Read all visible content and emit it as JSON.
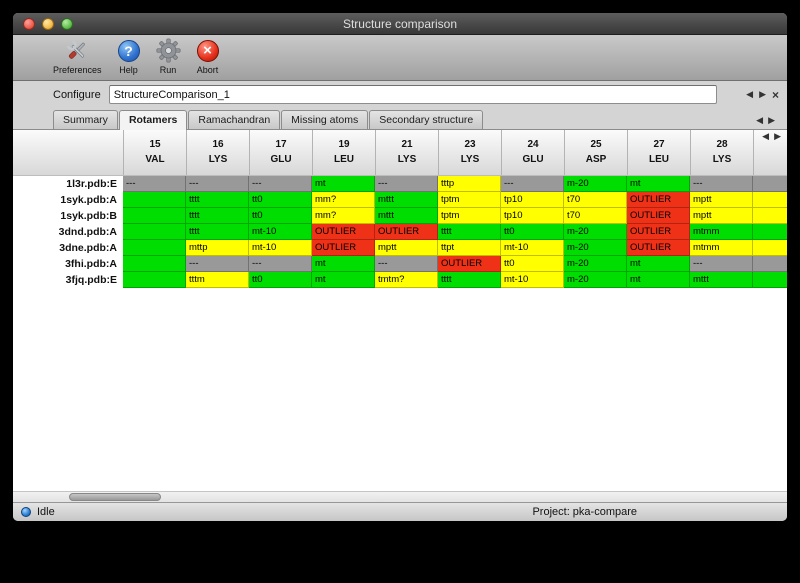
{
  "window": {
    "title": "Structure comparison"
  },
  "toolbar": {
    "items": [
      {
        "label": "Preferences"
      },
      {
        "label": "Help"
      },
      {
        "label": "Run"
      },
      {
        "label": "Abort"
      }
    ]
  },
  "configure": {
    "label": "Configure",
    "value": "StructureComparison_1"
  },
  "tabs": [
    {
      "label": "Summary",
      "active": false
    },
    {
      "label": "Rotamers",
      "active": true
    },
    {
      "label": "Ramachandran",
      "active": false
    },
    {
      "label": "Missing atoms",
      "active": false
    },
    {
      "label": "Secondary structure",
      "active": false
    }
  ],
  "icons": {
    "prev": "◀",
    "next": "▶",
    "close": "×",
    "help": "?",
    "abort": "×"
  },
  "rotamer_table": {
    "columns": [
      {
        "number": "15",
        "residue": "VAL"
      },
      {
        "number": "16",
        "residue": "LYS"
      },
      {
        "number": "17",
        "residue": "GLU"
      },
      {
        "number": "19",
        "residue": "LEU"
      },
      {
        "number": "21",
        "residue": "LYS"
      },
      {
        "number": "23",
        "residue": "LYS"
      },
      {
        "number": "24",
        "residue": "GLU"
      },
      {
        "number": "25",
        "residue": "ASP"
      },
      {
        "number": "27",
        "residue": "LEU"
      },
      {
        "number": "28",
        "residue": "LYS"
      },
      {
        "number": "",
        "residue": ""
      }
    ],
    "rows": [
      {
        "label": "1l3r.pdb:E",
        "cells": [
          {
            "text": "---",
            "color": "gray"
          },
          {
            "text": "---",
            "color": "gray"
          },
          {
            "text": "---",
            "color": "gray"
          },
          {
            "text": "mt",
            "color": "green"
          },
          {
            "text": "---",
            "color": "gray"
          },
          {
            "text": "tttp",
            "color": "yellow"
          },
          {
            "text": "---",
            "color": "gray"
          },
          {
            "text": "m-20",
            "color": "green"
          },
          {
            "text": "mt",
            "color": "green"
          },
          {
            "text": "---",
            "color": "gray"
          },
          {
            "text": "",
            "color": "gray"
          }
        ]
      },
      {
        "label": "1syk.pdb:A",
        "cells": [
          {
            "text": "",
            "color": "green"
          },
          {
            "text": "tttt",
            "color": "green"
          },
          {
            "text": "tt0",
            "color": "green"
          },
          {
            "text": "mm?",
            "color": "yellow"
          },
          {
            "text": "mttt",
            "color": "green"
          },
          {
            "text": "tptm",
            "color": "yellow"
          },
          {
            "text": "tp10",
            "color": "yellow"
          },
          {
            "text": "t70",
            "color": "yellow"
          },
          {
            "text": "OUTLIER",
            "color": "red"
          },
          {
            "text": "mptt",
            "color": "yellow"
          },
          {
            "text": "",
            "color": "yellow"
          }
        ]
      },
      {
        "label": "1syk.pdb:B",
        "cells": [
          {
            "text": "",
            "color": "green"
          },
          {
            "text": "tttt",
            "color": "green"
          },
          {
            "text": "tt0",
            "color": "green"
          },
          {
            "text": "mm?",
            "color": "yellow"
          },
          {
            "text": "mttt",
            "color": "green"
          },
          {
            "text": "tptm",
            "color": "yellow"
          },
          {
            "text": "tp10",
            "color": "yellow"
          },
          {
            "text": "t70",
            "color": "yellow"
          },
          {
            "text": "OUTLIER",
            "color": "red"
          },
          {
            "text": "mptt",
            "color": "yellow"
          },
          {
            "text": "",
            "color": "yellow"
          }
        ]
      },
      {
        "label": "3dnd.pdb:A",
        "cells": [
          {
            "text": "",
            "color": "green"
          },
          {
            "text": "tttt",
            "color": "green"
          },
          {
            "text": "mt-10",
            "color": "green"
          },
          {
            "text": "OUTLIER",
            "color": "red"
          },
          {
            "text": "OUTLIER",
            "color": "red"
          },
          {
            "text": "tttt",
            "color": "green"
          },
          {
            "text": "tt0",
            "color": "green"
          },
          {
            "text": "m-20",
            "color": "green"
          },
          {
            "text": "OUTLIER",
            "color": "red"
          },
          {
            "text": "mtmm",
            "color": "green"
          },
          {
            "text": "",
            "color": "green"
          }
        ]
      },
      {
        "label": "3dne.pdb:A",
        "cells": [
          {
            "text": "",
            "color": "green"
          },
          {
            "text": "mttp",
            "color": "yellow"
          },
          {
            "text": "mt-10",
            "color": "yellow"
          },
          {
            "text": "OUTLIER",
            "color": "red"
          },
          {
            "text": "mptt",
            "color": "yellow"
          },
          {
            "text": "ttpt",
            "color": "yellow"
          },
          {
            "text": "mt-10",
            "color": "yellow"
          },
          {
            "text": "m-20",
            "color": "green"
          },
          {
            "text": "OUTLIER",
            "color": "red"
          },
          {
            "text": "mtmm",
            "color": "yellow"
          },
          {
            "text": "",
            "color": "yellow"
          }
        ]
      },
      {
        "label": "3fhi.pdb:A",
        "cells": [
          {
            "text": "",
            "color": "green"
          },
          {
            "text": "---",
            "color": "gray"
          },
          {
            "text": "---",
            "color": "gray"
          },
          {
            "text": "mt",
            "color": "green"
          },
          {
            "text": "---",
            "color": "gray"
          },
          {
            "text": "OUTLIER",
            "color": "red"
          },
          {
            "text": "tt0",
            "color": "yellow"
          },
          {
            "text": "m-20",
            "color": "green"
          },
          {
            "text": "mt",
            "color": "green"
          },
          {
            "text": "---",
            "color": "gray"
          },
          {
            "text": "",
            "color": "gray"
          }
        ]
      },
      {
        "label": "3fjq.pdb:E",
        "cells": [
          {
            "text": "",
            "color": "green"
          },
          {
            "text": "tttm",
            "color": "yellow"
          },
          {
            "text": "tt0",
            "color": "green"
          },
          {
            "text": "mt",
            "color": "green"
          },
          {
            "text": "tmtm?",
            "color": "yellow"
          },
          {
            "text": "tttt",
            "color": "green"
          },
          {
            "text": "mt-10",
            "color": "yellow"
          },
          {
            "text": "m-20",
            "color": "green"
          },
          {
            "text": "mt",
            "color": "green"
          },
          {
            "text": "mttt",
            "color": "green"
          },
          {
            "text": "",
            "color": "green"
          }
        ]
      }
    ]
  },
  "status": {
    "state": "Idle",
    "project": "Project: pka-compare"
  },
  "colors": {
    "green": "#00dd00",
    "yellow": "#ffff00",
    "red": "#ee3117",
    "gray": "#999999"
  }
}
